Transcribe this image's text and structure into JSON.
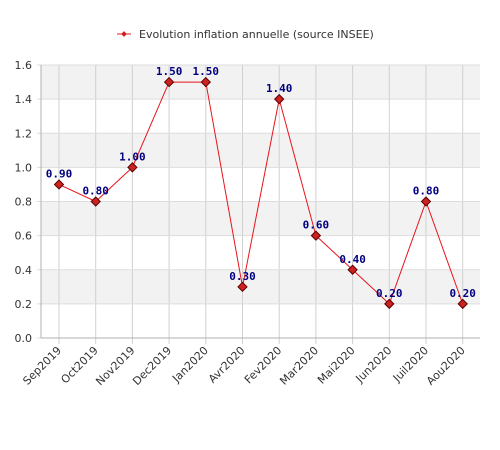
{
  "chart_data": {
    "type": "line",
    "title": "",
    "xlabel": "",
    "ylabel": "",
    "categories": [
      "Sep2019",
      "Oct2019",
      "Nov2019",
      "Dec2019",
      "Jan2020",
      "Avr2020",
      "Fev2020",
      "Mar2020",
      "Mai2020",
      "Jun2020",
      "Juil2020",
      "Aou2020"
    ],
    "series": [
      {
        "name": "Evolution inflation annuelle (source INSEE)",
        "values": [
          0.9,
          0.8,
          1.0,
          1.5,
          1.5,
          0.3,
          1.4,
          0.6,
          0.4,
          0.2,
          0.8,
          0.2
        ],
        "labels": [
          "0.90",
          "0.80",
          "1.00",
          "1.50",
          "1.50",
          "0.30",
          "1.40",
          "0.60",
          "0.40",
          "0.20",
          "0.80",
          "0.20"
        ],
        "color": "#e8141b",
        "marker_color": "#cc2222"
      }
    ],
    "ylim": [
      0,
      1.6
    ],
    "yticks": [
      "0.0",
      "0.2",
      "0.4",
      "0.6",
      "0.8",
      "1.0",
      "1.2",
      "1.4",
      "1.6"
    ],
    "grid": true,
    "band_color": "#f2f2f2",
    "legend": "top-center"
  }
}
